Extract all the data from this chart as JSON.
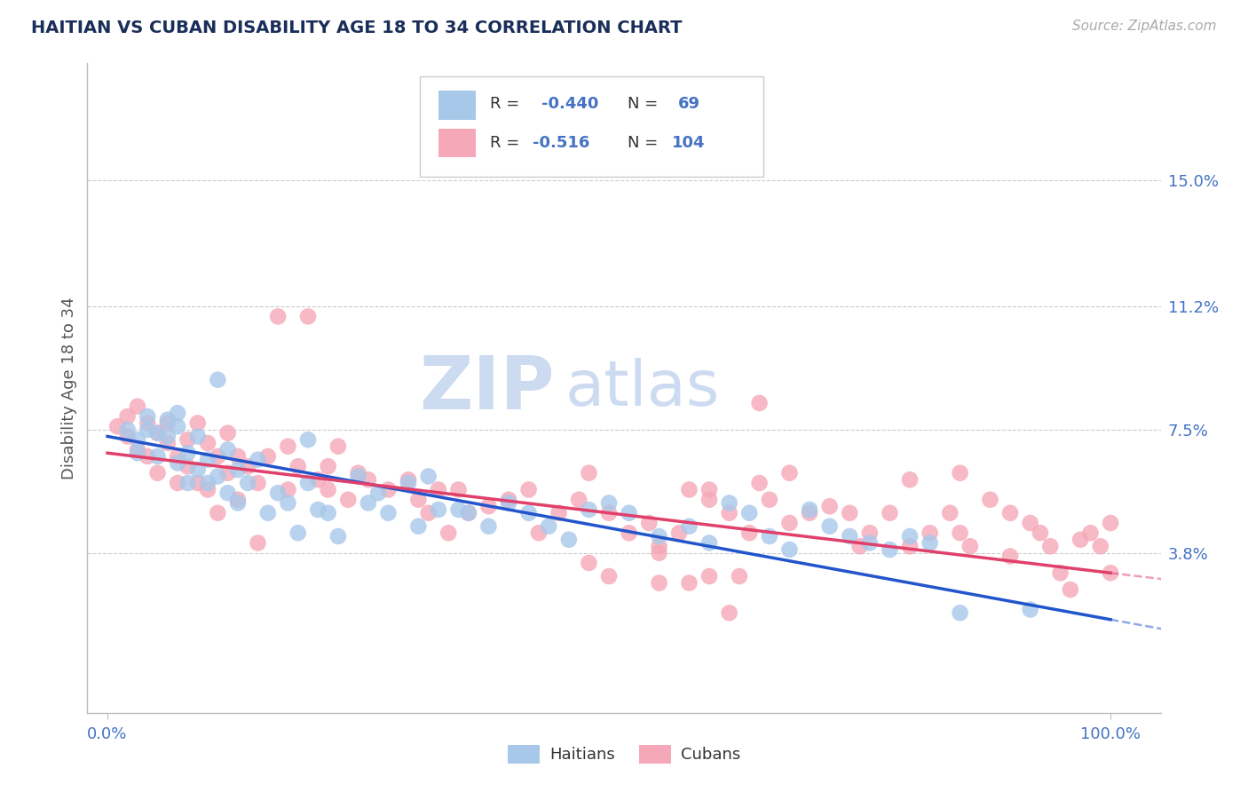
{
  "title": "HAITIAN VS CUBAN DISABILITY AGE 18 TO 34 CORRELATION CHART",
  "title_color": "#1a2e5a",
  "source_text": "Source: ZipAtlas.com",
  "ylabel": "Disability Age 18 to 34",
  "xlim_lo": -0.02,
  "xlim_hi": 1.05,
  "ylim_lo": -0.01,
  "ylim_hi": 0.185,
  "xtick_positions": [
    0.0,
    1.0
  ],
  "xtick_labels": [
    "0.0%",
    "100.0%"
  ],
  "ytick_values": [
    0.038,
    0.075,
    0.112,
    0.15
  ],
  "ytick_labels": [
    "3.8%",
    "7.5%",
    "11.2%",
    "15.0%"
  ],
  "grid_color": "#cccccc",
  "background_color": "#ffffff",
  "haitian_color": "#a8c8ea",
  "cuban_color": "#f5a8b8",
  "haitian_line_color": "#2255cc",
  "cuban_line_color": "#e0406a",
  "tick_label_color": "#4472c4",
  "legend_text_color": "#4472c4",
  "legend_label_color": "#333333",
  "watermark_zip_color": "#c8d8ef",
  "watermark_atlas_color": "#c8d8ef",
  "haitian_points": [
    [
      0.02,
      0.075
    ],
    [
      0.03,
      0.072
    ],
    [
      0.03,
      0.068
    ],
    [
      0.04,
      0.079
    ],
    [
      0.04,
      0.075
    ],
    [
      0.05,
      0.074
    ],
    [
      0.05,
      0.067
    ],
    [
      0.06,
      0.073
    ],
    [
      0.06,
      0.078
    ],
    [
      0.07,
      0.076
    ],
    [
      0.07,
      0.065
    ],
    [
      0.07,
      0.08
    ],
    [
      0.08,
      0.068
    ],
    [
      0.08,
      0.059
    ],
    [
      0.09,
      0.063
    ],
    [
      0.09,
      0.073
    ],
    [
      0.1,
      0.066
    ],
    [
      0.1,
      0.059
    ],
    [
      0.11,
      0.061
    ],
    [
      0.11,
      0.09
    ],
    [
      0.12,
      0.056
    ],
    [
      0.12,
      0.069
    ],
    [
      0.13,
      0.053
    ],
    [
      0.13,
      0.063
    ],
    [
      0.14,
      0.059
    ],
    [
      0.15,
      0.066
    ],
    [
      0.16,
      0.05
    ],
    [
      0.17,
      0.056
    ],
    [
      0.18,
      0.053
    ],
    [
      0.19,
      0.044
    ],
    [
      0.2,
      0.059
    ],
    [
      0.2,
      0.072
    ],
    [
      0.21,
      0.051
    ],
    [
      0.22,
      0.05
    ],
    [
      0.23,
      0.043
    ],
    [
      0.25,
      0.061
    ],
    [
      0.26,
      0.053
    ],
    [
      0.27,
      0.056
    ],
    [
      0.28,
      0.05
    ],
    [
      0.3,
      0.059
    ],
    [
      0.31,
      0.046
    ],
    [
      0.32,
      0.061
    ],
    [
      0.33,
      0.051
    ],
    [
      0.35,
      0.051
    ],
    [
      0.36,
      0.05
    ],
    [
      0.38,
      0.046
    ],
    [
      0.4,
      0.053
    ],
    [
      0.42,
      0.05
    ],
    [
      0.44,
      0.046
    ],
    [
      0.46,
      0.042
    ],
    [
      0.48,
      0.051
    ],
    [
      0.5,
      0.053
    ],
    [
      0.52,
      0.05
    ],
    [
      0.55,
      0.043
    ],
    [
      0.58,
      0.046
    ],
    [
      0.6,
      0.041
    ],
    [
      0.62,
      0.053
    ],
    [
      0.64,
      0.05
    ],
    [
      0.66,
      0.043
    ],
    [
      0.68,
      0.039
    ],
    [
      0.7,
      0.051
    ],
    [
      0.72,
      0.046
    ],
    [
      0.74,
      0.043
    ],
    [
      0.76,
      0.041
    ],
    [
      0.78,
      0.039
    ],
    [
      0.8,
      0.043
    ],
    [
      0.82,
      0.041
    ],
    [
      0.85,
      0.02
    ],
    [
      0.92,
      0.021
    ]
  ],
  "cuban_points": [
    [
      0.01,
      0.076
    ],
    [
      0.02,
      0.073
    ],
    [
      0.02,
      0.079
    ],
    [
      0.03,
      0.069
    ],
    [
      0.03,
      0.082
    ],
    [
      0.04,
      0.077
    ],
    [
      0.04,
      0.067
    ],
    [
      0.05,
      0.074
    ],
    [
      0.05,
      0.062
    ],
    [
      0.06,
      0.077
    ],
    [
      0.06,
      0.071
    ],
    [
      0.07,
      0.067
    ],
    [
      0.07,
      0.059
    ],
    [
      0.08,
      0.072
    ],
    [
      0.08,
      0.064
    ],
    [
      0.09,
      0.077
    ],
    [
      0.09,
      0.059
    ],
    [
      0.1,
      0.071
    ],
    [
      0.1,
      0.057
    ],
    [
      0.11,
      0.067
    ],
    [
      0.11,
      0.05
    ],
    [
      0.12,
      0.074
    ],
    [
      0.12,
      0.062
    ],
    [
      0.13,
      0.067
    ],
    [
      0.13,
      0.054
    ],
    [
      0.14,
      0.064
    ],
    [
      0.15,
      0.059
    ],
    [
      0.15,
      0.041
    ],
    [
      0.16,
      0.067
    ],
    [
      0.17,
      0.109
    ],
    [
      0.18,
      0.07
    ],
    [
      0.18,
      0.057
    ],
    [
      0.19,
      0.064
    ],
    [
      0.2,
      0.109
    ],
    [
      0.21,
      0.06
    ],
    [
      0.22,
      0.057
    ],
    [
      0.22,
      0.064
    ],
    [
      0.23,
      0.07
    ],
    [
      0.24,
      0.054
    ],
    [
      0.25,
      0.062
    ],
    [
      0.26,
      0.06
    ],
    [
      0.28,
      0.057
    ],
    [
      0.3,
      0.06
    ],
    [
      0.31,
      0.054
    ],
    [
      0.32,
      0.05
    ],
    [
      0.33,
      0.057
    ],
    [
      0.34,
      0.044
    ],
    [
      0.35,
      0.057
    ],
    [
      0.36,
      0.05
    ],
    [
      0.38,
      0.052
    ],
    [
      0.4,
      0.054
    ],
    [
      0.42,
      0.057
    ],
    [
      0.43,
      0.044
    ],
    [
      0.45,
      0.05
    ],
    [
      0.47,
      0.054
    ],
    [
      0.48,
      0.062
    ],
    [
      0.48,
      0.035
    ],
    [
      0.5,
      0.05
    ],
    [
      0.52,
      0.044
    ],
    [
      0.54,
      0.047
    ],
    [
      0.55,
      0.04
    ],
    [
      0.55,
      0.029
    ],
    [
      0.57,
      0.044
    ],
    [
      0.58,
      0.057
    ],
    [
      0.58,
      0.029
    ],
    [
      0.6,
      0.057
    ],
    [
      0.6,
      0.054
    ],
    [
      0.62,
      0.05
    ],
    [
      0.63,
      0.031
    ],
    [
      0.64,
      0.044
    ],
    [
      0.65,
      0.083
    ],
    [
      0.65,
      0.059
    ],
    [
      0.66,
      0.054
    ],
    [
      0.68,
      0.047
    ],
    [
      0.68,
      0.062
    ],
    [
      0.7,
      0.05
    ],
    [
      0.72,
      0.052
    ],
    [
      0.74,
      0.05
    ],
    [
      0.76,
      0.044
    ],
    [
      0.78,
      0.05
    ],
    [
      0.8,
      0.06
    ],
    [
      0.82,
      0.044
    ],
    [
      0.84,
      0.05
    ],
    [
      0.85,
      0.044
    ],
    [
      0.85,
      0.062
    ],
    [
      0.86,
      0.04
    ],
    [
      0.88,
      0.054
    ],
    [
      0.9,
      0.05
    ],
    [
      0.9,
      0.037
    ],
    [
      0.92,
      0.047
    ],
    [
      0.93,
      0.044
    ],
    [
      0.94,
      0.04
    ],
    [
      0.95,
      0.032
    ],
    [
      0.96,
      0.027
    ],
    [
      0.97,
      0.042
    ],
    [
      0.98,
      0.044
    ],
    [
      0.99,
      0.04
    ],
    [
      1.0,
      0.047
    ],
    [
      1.0,
      0.032
    ],
    [
      0.5,
      0.031
    ],
    [
      0.62,
      0.02
    ],
    [
      0.75,
      0.04
    ],
    [
      0.8,
      0.04
    ],
    [
      0.55,
      0.038
    ],
    [
      0.6,
      0.031
    ]
  ]
}
